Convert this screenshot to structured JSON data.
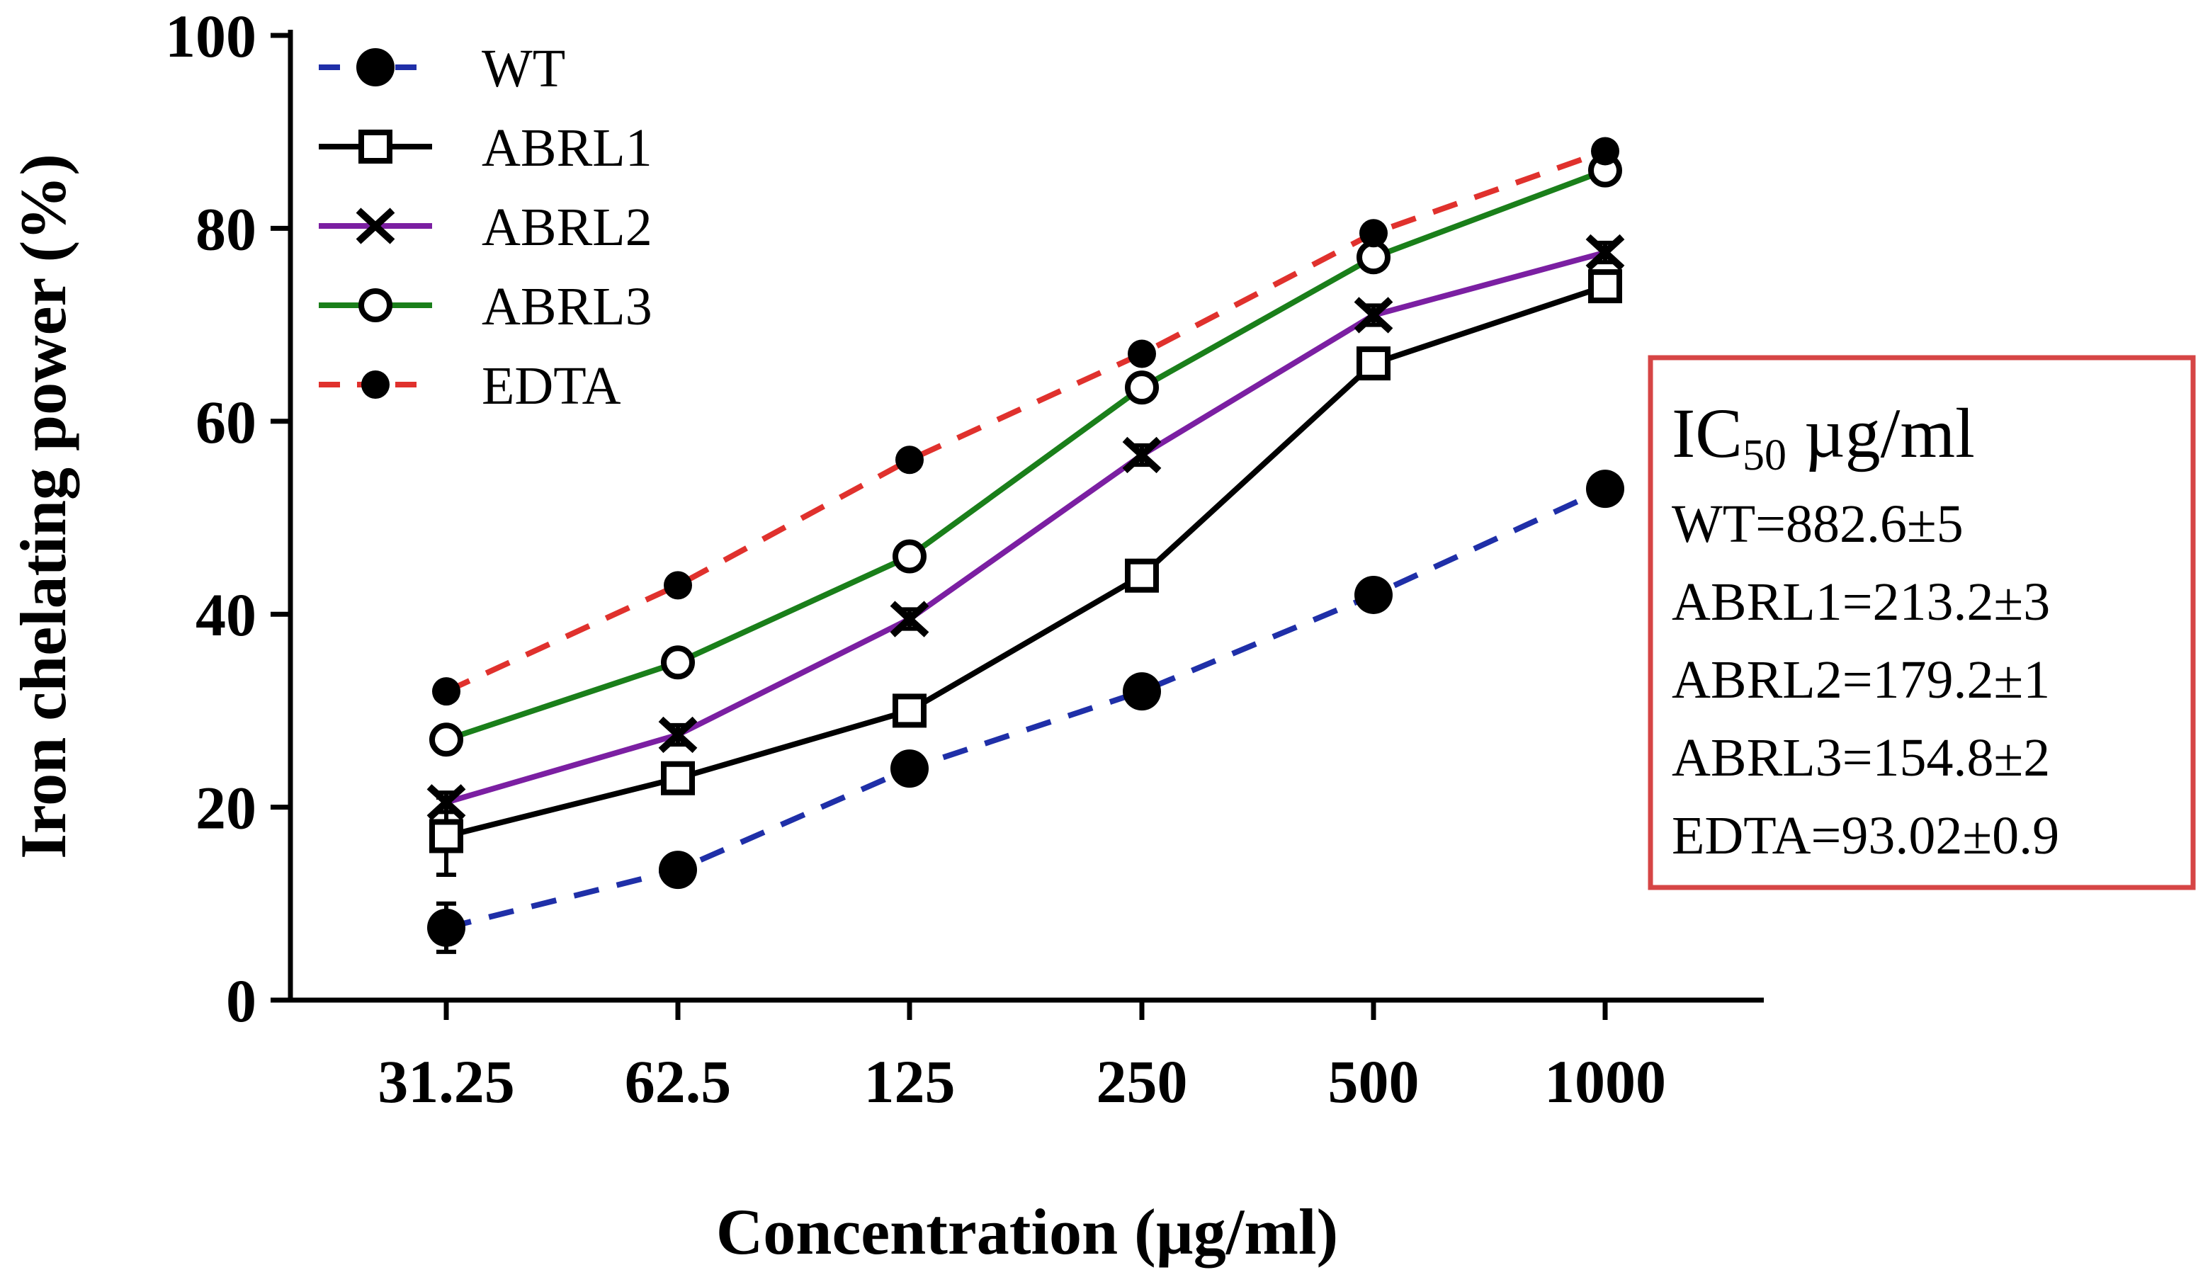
{
  "chart_data": {
    "type": "line",
    "title": "",
    "xlabel": "Concentration (µg/ml)",
    "ylabel": "Iron chelating power (%)",
    "x_scale": "categorical",
    "categories": [
      "31.25",
      "62.5",
      "125",
      "250",
      "500",
      "1000"
    ],
    "ylim": [
      0,
      100
    ],
    "yticks": [
      0,
      20,
      40,
      60,
      80,
      100
    ],
    "legend_position": "top-left",
    "series": [
      {
        "name": "WT",
        "values": [
          7.5,
          13.5,
          24,
          32,
          42,
          53
        ],
        "errors": [
          2.5,
          1,
          1,
          1,
          1,
          1
        ],
        "color": "#1f2fa8",
        "line_style": "dashed",
        "marker": "filled-circle"
      },
      {
        "name": "ABRL1",
        "values": [
          17,
          23,
          30,
          44,
          66,
          74
        ],
        "errors": [
          4,
          1,
          1,
          1,
          1,
          1
        ],
        "color": "#000000",
        "line_style": "solid",
        "marker": "open-square"
      },
      {
        "name": "ABRL2",
        "values": [
          20.5,
          27.5,
          39.5,
          56.5,
          71,
          77.5
        ],
        "errors": [
          1,
          1,
          1,
          1,
          1,
          1
        ],
        "color": "#7b1fa2",
        "line_style": "solid",
        "marker": "x-cross"
      },
      {
        "name": "ABRL3",
        "values": [
          27,
          35,
          46,
          63.5,
          77,
          86
        ],
        "errors": [
          1,
          1,
          1,
          1,
          1,
          1
        ],
        "color": "#1a7f1a",
        "line_style": "solid",
        "marker": "open-circle"
      },
      {
        "name": "EDTA",
        "values": [
          32,
          43,
          56,
          67,
          79.5,
          88
        ],
        "errors": [
          0.5,
          0.5,
          0.5,
          0.5,
          0.5,
          0.5
        ],
        "color": "#e0312d",
        "line_style": "dashed",
        "marker": "filled-circle-small"
      }
    ],
    "annotations": {
      "ic50_box": {
        "title_main": "IC",
        "title_sub": "50",
        "title_rest": " µg/ml",
        "lines": [
          "WT=882.6±5",
          "ABRL1=213.2±3",
          "ABRL2=179.2±1",
          "ABRL3=154.8±2",
          "EDTA=93.02±0.9"
        ],
        "border_color": "#d64545"
      }
    }
  }
}
